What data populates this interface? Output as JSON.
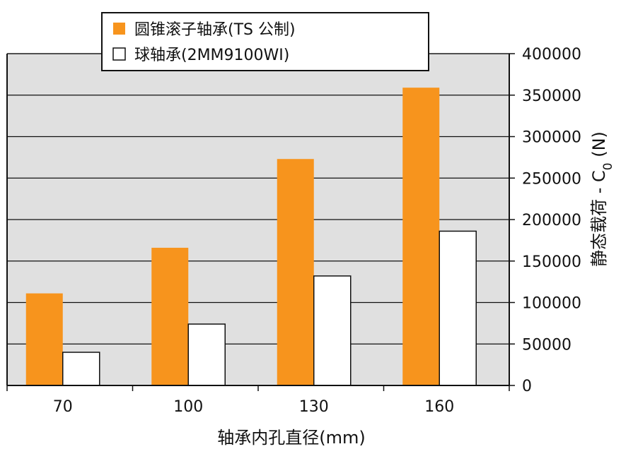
{
  "chart_data": {
    "type": "bar",
    "categories": [
      "70",
      "100",
      "130",
      "160"
    ],
    "series": [
      {
        "name": "圆锥滚子轴承(TS 公制)",
        "color": "#f7941d",
        "values": [
          111000,
          166000,
          273000,
          359000
        ]
      },
      {
        "name": "球轴承(2MM9100WI)",
        "color": "#ffffff",
        "values": [
          40000,
          74000,
          132000,
          186000
        ]
      }
    ],
    "xlabel": "轴承内孔直径(mm)",
    "ylabel": "静态载荷 - C0 (N)",
    "ylim": [
      0,
      400000
    ],
    "yticks": [
      "0",
      "50000",
      "100000",
      "150000",
      "200000",
      "250000",
      "300000",
      "350000",
      "400000"
    ],
    "grid": true,
    "legend_position": "top-left",
    "plot_background": "#e0e0e0"
  }
}
